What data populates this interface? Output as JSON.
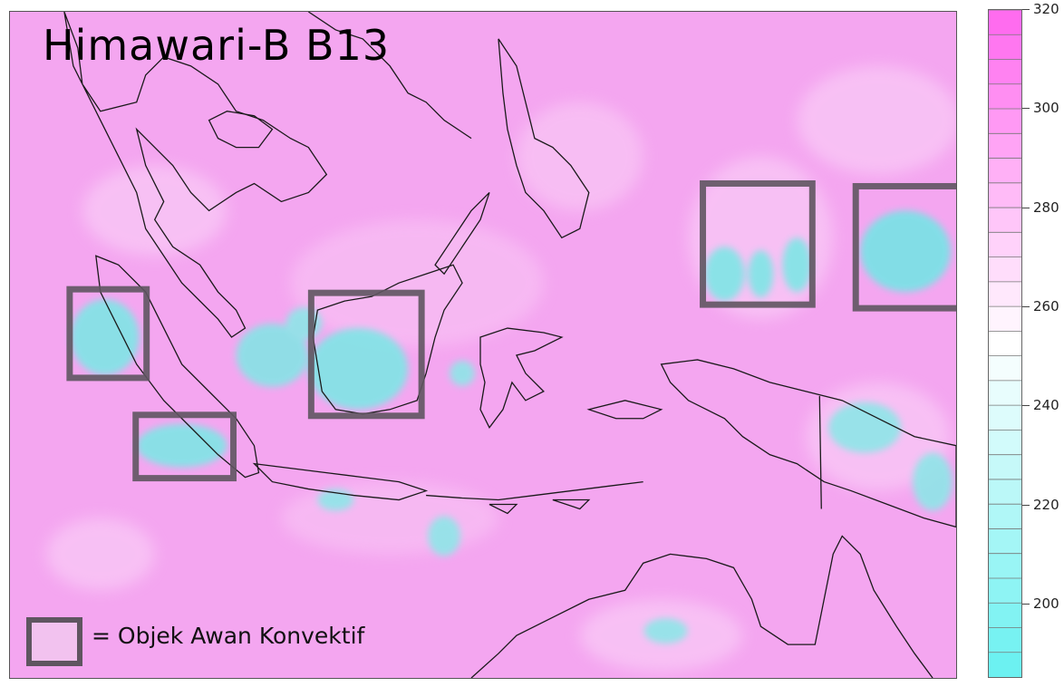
{
  "map": {
    "title": "Himawari-B B13",
    "legend_label": "= Objek Awan Konvektif",
    "colors": {
      "background": "#f4a6f0",
      "cold_cloud": "#7fe6e6",
      "box_outline": "#5f5560",
      "coastline": "#1a1a1a"
    }
  },
  "colorbar": {
    "min": 185,
    "max": 320,
    "ticks": [
      "320",
      "300",
      "280",
      "260",
      "240",
      "220",
      "200"
    ],
    "tick_values": [
      320,
      300,
      280,
      260,
      240,
      220,
      200
    ],
    "steps": 27,
    "color_low": "#66f0f0",
    "color_mid": "#ffffff",
    "color_high": "#ff66ee"
  }
}
